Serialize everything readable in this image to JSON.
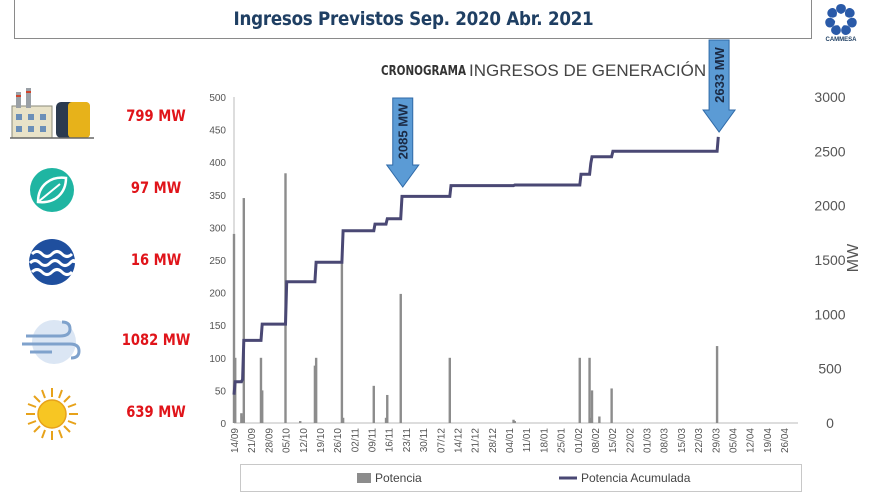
{
  "header": {
    "title": "Ingresos Previstos Sep. 2020  Abr. 2021",
    "logo_icon": "cammesa-logo-icon",
    "logo_text": "CAMMESA"
  },
  "technologies": [
    {
      "icon": "thermal-plant-icon",
      "label": "799 MW"
    },
    {
      "icon": "biomass-leaf-icon",
      "label": "97 MW"
    },
    {
      "icon": "hydro-water-icon",
      "label": "16 MW"
    },
    {
      "icon": "wind-icon",
      "label": "1082 MW"
    },
    {
      "icon": "solar-sun-icon",
      "label": "639 MW"
    }
  ],
  "colors": {
    "bar": "#8c8c8c",
    "line": "#4a4874",
    "label_red": "#e0141a",
    "callout_fill": "#5b9bd5",
    "title_blue": "#1f3f63"
  },
  "chart_data": {
    "type": "bar+line",
    "title_bold": "CRONOGRAMA",
    "title_rest": "INGRESOS DE GENERACIÓN",
    "y_left_ticks": [
      0,
      50,
      100,
      150,
      200,
      250,
      300,
      350,
      400,
      450,
      500
    ],
    "y_right_ticks": [
      0,
      500,
      1000,
      1500,
      2000,
      2500,
      3000
    ],
    "y_right_label": "MW",
    "ylim_left": [
      0,
      500
    ],
    "ylim_right": [
      0,
      3000
    ],
    "x_labels": [
      "14/09",
      "21/09",
      "28/09",
      "05/10",
      "12/10",
      "19/10",
      "26/10",
      "02/11",
      "09/11",
      "16/11",
      "23/11",
      "30/11",
      "07/12",
      "14/12",
      "21/12",
      "28/12",
      "04/01",
      "11/01",
      "18/01",
      "25/01",
      "01/02",
      "08/02",
      "15/02",
      "22/02",
      "01/03",
      "08/03",
      "15/03",
      "22/03",
      "29/03",
      "05/04",
      "12/04",
      "19/04",
      "26/04"
    ],
    "x_range_days": [
      0,
      230
    ],
    "legend": [
      "Potencia",
      "Potencia Acumulada"
    ],
    "bars": [
      {
        "day": 0,
        "value": 290
      },
      {
        "day": 0.5,
        "value": 100
      },
      {
        "day": 3,
        "value": 15
      },
      {
        "day": 3.5,
        "value": 10
      },
      {
        "day": 4,
        "value": 345
      },
      {
        "day": 11,
        "value": 100
      },
      {
        "day": 11.5,
        "value": 50
      },
      {
        "day": 21,
        "value": 383
      },
      {
        "day": 27,
        "value": 3
      },
      {
        "day": 33,
        "value": 88
      },
      {
        "day": 33.5,
        "value": 100
      },
      {
        "day": 44,
        "value": 245
      },
      {
        "day": 44.5,
        "value": 8
      },
      {
        "day": 57,
        "value": 57
      },
      {
        "day": 62,
        "value": 8
      },
      {
        "day": 62.5,
        "value": 43
      },
      {
        "day": 68,
        "value": 198
      },
      {
        "day": 88,
        "value": 100
      },
      {
        "day": 114,
        "value": 5
      },
      {
        "day": 114.5,
        "value": 3
      },
      {
        "day": 141,
        "value": 100
      },
      {
        "day": 145,
        "value": 100
      },
      {
        "day": 145.5,
        "value": 8
      },
      {
        "day": 146,
        "value": 50
      },
      {
        "day": 149,
        "value": 10
      },
      {
        "day": 154,
        "value": 53
      },
      {
        "day": 197,
        "value": 118
      }
    ],
    "cumulative": [
      [
        0,
        260
      ],
      [
        0.5,
        380
      ],
      [
        3,
        380
      ],
      [
        3.5,
        400
      ],
      [
        4,
        760
      ],
      [
        11,
        760
      ],
      [
        11.5,
        910
      ],
      [
        21,
        910
      ],
      [
        21.5,
        1300
      ],
      [
        33,
        1300
      ],
      [
        33.5,
        1480
      ],
      [
        44,
        1480
      ],
      [
        44.5,
        1770
      ],
      [
        57,
        1770
      ],
      [
        57.5,
        1830
      ],
      [
        62,
        1830
      ],
      [
        62.5,
        1880
      ],
      [
        68,
        1880
      ],
      [
        68.5,
        2085
      ],
      [
        88,
        2085
      ],
      [
        88.5,
        2185
      ],
      [
        114,
        2185
      ],
      [
        114.5,
        2190
      ],
      [
        141,
        2190
      ],
      [
        141.5,
        2290
      ],
      [
        145,
        2290
      ],
      [
        145.5,
        2390
      ],
      [
        146,
        2450
      ],
      [
        154,
        2450
      ],
      [
        154.5,
        2500
      ],
      [
        197,
        2500
      ],
      [
        197.5,
        2633
      ]
    ],
    "callouts": [
      {
        "day": 68,
        "text": "2085 MW"
      },
      {
        "day": 197,
        "text": "2633 MW"
      }
    ]
  }
}
